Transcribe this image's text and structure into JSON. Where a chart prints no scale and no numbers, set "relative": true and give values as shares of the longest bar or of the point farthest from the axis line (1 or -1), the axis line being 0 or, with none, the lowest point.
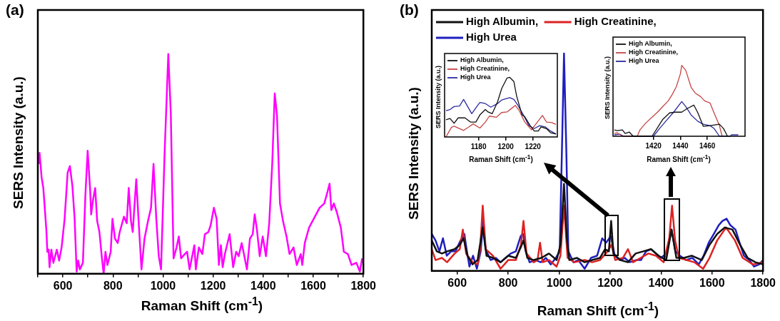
{
  "chart_data": [
    {
      "type": "line",
      "relative": true,
      "annotations": [
        "(a)"
      ],
      "xlabel": "Raman Shift (cm$^{-1}$)",
      "ylabel": "SERS Intensity (a.u.)",
      "xlim": [
        500,
        1800
      ],
      "xticks": [
        {
          "value": 500,
          "label": null
        },
        600,
        {
          "value": 700,
          "label": null
        },
        800,
        {
          "value": 900,
          "label": null
        },
        1000,
        {
          "value": 1100,
          "label": null
        },
        1200,
        {
          "value": 1300,
          "label": null
        },
        1400,
        {
          "value": 1500,
          "label": null
        },
        1600,
        {
          "value": 1700,
          "label": null
        },
        1800
      ],
      "marker": "none",
      "series": [
        {
          "color": "#ff00ff",
          "x": [
            504,
            507,
            515,
            522,
            534,
            538,
            543,
            547,
            554,
            562,
            576,
            585,
            595,
            607,
            619,
            628,
            638,
            647,
            655,
            661,
            668,
            680,
            690,
            699,
            709,
            713,
            721,
            729,
            737,
            746,
            756,
            763,
            770,
            778,
            791,
            798,
            808,
            819,
            827,
            844,
            855,
            863,
            872,
            879,
            893,
            902,
            914,
            926,
            940,
            952,
            962,
            973,
            983,
            992,
            1006,
            1021,
            1031,
            1042,
            1054,
            1063,
            1072,
            1087,
            1096,
            1106,
            1125,
            1131,
            1143,
            1157,
            1167,
            1181,
            1190,
            1203,
            1214,
            1223,
            1231,
            1238,
            1247,
            1266,
            1280,
            1292,
            1302,
            1314,
            1323,
            1335,
            1347,
            1358,
            1366,
            1375,
            1386,
            1398,
            1411,
            1424,
            1436,
            1446,
            1455,
            1467,
            1479,
            1493,
            1505,
            1521,
            1534,
            1550,
            1556,
            1566,
            1583,
            1597,
            1611,
            1625,
            1644,
            1656,
            1665,
            1672,
            1682,
            1694,
            1710,
            1722,
            1738,
            1753,
            1772,
            1786,
            1795
          ],
          "values": [
            0.5,
            0.55,
            0.44,
            0.39,
            0.2,
            0.1,
            0.11,
            0.03,
            0.11,
            0.05,
            0.11,
            0.06,
            0.12,
            0.25,
            0.46,
            0.49,
            0.4,
            0.25,
            0.01,
            0.06,
            0.02,
            0.05,
            0.36,
            0.56,
            0.38,
            0.27,
            0.34,
            0.39,
            0.24,
            0.19,
            0.07,
            0.0,
            0.1,
            0.04,
            0.1,
            0.25,
            0.16,
            0.14,
            0.19,
            0.26,
            0.23,
            0.39,
            0.24,
            0.19,
            0.43,
            0.25,
            0.02,
            0.16,
            0.24,
            0.3,
            0.5,
            0.25,
            0.08,
            0.02,
            0.54,
            1.0,
            0.73,
            0.07,
            0.12,
            0.17,
            0.07,
            0.09,
            0.1,
            0.02,
            0.13,
            0.02,
            0.12,
            0.09,
            0.18,
            0.19,
            0.22,
            0.3,
            0.25,
            0.04,
            0.13,
            0.03,
            0.09,
            0.18,
            0.03,
            0.1,
            0.08,
            0.14,
            0.09,
            0.02,
            0.16,
            0.18,
            0.27,
            0.2,
            0.08,
            0.17,
            0.08,
            0.23,
            0.5,
            0.82,
            0.72,
            0.32,
            0.24,
            0.17,
            0.09,
            0.12,
            0.04,
            0.09,
            0.04,
            0.14,
            0.21,
            0.24,
            0.27,
            0.3,
            0.32,
            0.37,
            0.41,
            0.29,
            0.32,
            0.28,
            0.21,
            0.1,
            0.09,
            0.04,
            0.05,
            0.01,
            0.07
          ]
        }
      ]
    },
    {
      "type": "line",
      "relative": true,
      "annotations": [
        "(b)"
      ],
      "xlabel": "Raman Shift (cm$^{-1}$)",
      "ylabel": "SERS Intensity (a.u.)",
      "xlim": [
        500,
        1800
      ],
      "xticks": [
        600,
        800,
        1000,
        1200,
        1400,
        1600,
        1800
      ],
      "marker": "none",
      "legend": "top left",
      "series": [
        {
          "name": "High Albumin,",
          "color": "#111111",
          "x": [
            500,
            520,
            540,
            560,
            590,
            610,
            625,
            640,
            660,
            680,
            700,
            715,
            740,
            770,
            800,
            830,
            850,
            860,
            875,
            900,
            930,
            960,
            990,
            1005,
            1019,
            1030,
            1040,
            1070,
            1100,
            1130,
            1160,
            1180,
            1195,
            1204,
            1213,
            1240,
            1270,
            1300,
            1330,
            1360,
            1390,
            1420,
            1441,
            1460,
            1490,
            1520,
            1560,
            1590,
            1620,
            1650,
            1680,
            1710,
            1740,
            1770,
            1800
          ],
          "values": [
            0.14,
            0.09,
            0.08,
            0.09,
            0.1,
            0.12,
            0.15,
            0.07,
            0.03,
            0.05,
            0.2,
            0.07,
            0.06,
            0.04,
            0.07,
            0.06,
            0.11,
            0.14,
            0.06,
            0.05,
            0.06,
            0.08,
            0.05,
            0.12,
            0.4,
            0.15,
            0.05,
            0.06,
            0.04,
            0.05,
            0.06,
            0.1,
            0.09,
            0.23,
            0.08,
            0.05,
            0.04,
            0.08,
            0.09,
            0.1,
            0.07,
            0.05,
            0.19,
            0.06,
            0.06,
            0.07,
            0.05,
            0.12,
            0.17,
            0.2,
            0.19,
            0.12,
            0.06,
            0.04,
            0.03
          ]
        },
        {
          "name": "High Creatinine,",
          "color": "#dd2222",
          "x": [
            500,
            515,
            540,
            560,
            590,
            610,
            622,
            635,
            660,
            680,
            690,
            700,
            712,
            740,
            770,
            800,
            830,
            850,
            860,
            872,
            900,
            915,
            925,
            935,
            960,
            990,
            1005,
            1019,
            1033,
            1060,
            1100,
            1130,
            1160,
            1190,
            1205,
            1220,
            1250,
            1270,
            1290,
            1320,
            1350,
            1380,
            1410,
            1432,
            1443,
            1455,
            1470,
            1500,
            1530,
            1565,
            1590,
            1620,
            1655,
            1690,
            1720,
            1760,
            1800
          ],
          "values": [
            0.1,
            0.05,
            0.06,
            0.04,
            0.08,
            0.1,
            0.19,
            0.08,
            0.04,
            0.03,
            0.1,
            0.3,
            0.1,
            0.07,
            0.01,
            0.05,
            0.05,
            0.12,
            0.23,
            0.08,
            0.04,
            0.05,
            0.13,
            0.04,
            0.05,
            0.02,
            0.07,
            0.3,
            0.06,
            0.04,
            0.05,
            0.04,
            0.05,
            0.09,
            0.12,
            0.05,
            0.06,
            0.1,
            0.04,
            0.06,
            0.08,
            0.07,
            0.04,
            0.15,
            0.3,
            0.14,
            0.06,
            0.05,
            0.04,
            0.01,
            0.06,
            0.14,
            0.2,
            0.14,
            0.06,
            0.03,
            0.04
          ]
        },
        {
          "name": "High Urea",
          "color": "#1f1fbf",
          "x": [
            500,
            515,
            530,
            544,
            559,
            576,
            593,
            613,
            628,
            638,
            648,
            662,
            677,
            692,
            702,
            711,
            731,
            751,
            770,
            790,
            810,
            830,
            849,
            859,
            869,
            884,
            908,
            928,
            948,
            967,
            987,
            1002,
            1011,
            1019,
            1028,
            1036,
            1056,
            1075,
            1100,
            1125,
            1149,
            1169,
            1184,
            1203,
            1218,
            1238,
            1257,
            1277,
            1302,
            1321,
            1341,
            1361,
            1380,
            1400,
            1420,
            1441,
            1456,
            1474,
            1498,
            1523,
            1548,
            1567,
            1587,
            1607,
            1626,
            1641,
            1657,
            1672,
            1692,
            1708,
            1725,
            1746,
            1765,
            1785,
            1800
          ],
          "values": [
            0.17,
            0.14,
            0.09,
            0.15,
            0.07,
            0.09,
            0.09,
            0.14,
            0.17,
            0.09,
            0.02,
            0.07,
            0.01,
            0.09,
            0.23,
            0.1,
            0.05,
            0.06,
            0.04,
            0.06,
            0.08,
            0.09,
            0.16,
            0.17,
            0.09,
            0.04,
            0.05,
            0.04,
            0.06,
            0.03,
            0.06,
            0.09,
            0.56,
            1.0,
            0.56,
            0.09,
            0.04,
            0.05,
            0.01,
            0.06,
            0.07,
            0.15,
            0.13,
            0.16,
            0.07,
            0.05,
            0.06,
            0.04,
            0.05,
            0.05,
            0.09,
            0.1,
            0.08,
            0.06,
            0.08,
            0.19,
            0.09,
            0.07,
            0.05,
            0.06,
            0.03,
            0.07,
            0.13,
            0.17,
            0.21,
            0.23,
            0.24,
            0.21,
            0.19,
            0.13,
            0.07,
            0.05,
            0.02,
            0.03,
            0.05
          ]
        }
      ]
    },
    {
      "type": "line",
      "relative": true,
      "xlabel": "Raman Shift (cm$^{-1}$)",
      "ylabel": "SERS Intensity (a.u.)",
      "xlim": [
        1155,
        1238
      ],
      "xticks": [
        1180,
        1200,
        1220
      ],
      "marker": "none",
      "legend": "top left",
      "series": [
        {
          "name": "High Albumin,",
          "color": "#111111",
          "x": [
            1156,
            1159,
            1162,
            1165,
            1170,
            1174,
            1178,
            1181,
            1185,
            1187,
            1190,
            1194,
            1197,
            1201,
            1203,
            1206,
            1208,
            1212,
            1214,
            1218,
            1221,
            1224,
            1226,
            1230,
            1233,
            1237
          ],
          "values": [
            0.29,
            0.31,
            0.23,
            0.32,
            0.32,
            0.25,
            0.25,
            0.37,
            0.46,
            0.42,
            0.39,
            0.59,
            0.81,
            0.99,
            1.0,
            0.93,
            0.69,
            0.37,
            0.34,
            0.19,
            0.1,
            0.1,
            0.17,
            0.14,
            0.07,
            0.05
          ]
        },
        {
          "name": "High Creatinine,",
          "color": "#c64545",
          "x": [
            1156,
            1160,
            1162,
            1169,
            1173,
            1176,
            1181,
            1185,
            1188,
            1193,
            1197,
            1201,
            1206,
            1207,
            1210,
            1214,
            1219,
            1223,
            1227,
            1230,
            1234,
            1237
          ],
          "values": [
            0.0,
            0.16,
            0.18,
            0.11,
            0.17,
            0.22,
            0.15,
            0.25,
            0.35,
            0.33,
            0.41,
            0.42,
            0.51,
            0.53,
            0.44,
            0.25,
            0.12,
            0.24,
            0.36,
            0.25,
            0.24,
            0.21
          ]
        },
        {
          "name": "High Urea",
          "color": "#2b2ba0",
          "x": [
            1156,
            1159,
            1162,
            1166,
            1169,
            1172,
            1175,
            1179,
            1181,
            1185,
            1189,
            1194,
            1197,
            1203,
            1206,
            1209,
            1213,
            1217,
            1221,
            1225,
            1229,
            1233,
            1237
          ],
          "values": [
            0.44,
            0.46,
            0.51,
            0.52,
            0.63,
            0.51,
            0.39,
            0.52,
            0.58,
            0.56,
            0.5,
            0.56,
            0.62,
            0.66,
            0.63,
            0.53,
            0.37,
            0.19,
            0.14,
            0.19,
            0.17,
            0.1,
            0.05
          ]
        }
      ]
    },
    {
      "type": "line",
      "relative": true,
      "xlabel": "Raman Shift (cm$^{-1}$)",
      "ylabel": "SERS Intensity (a.u.)",
      "xlim": [
        1390,
        1488
      ],
      "xticks": [
        1420,
        1440,
        1460
      ],
      "marker": "none",
      "legend": "top left",
      "series": [
        {
          "name": "High Albumin,",
          "color": "#111111",
          "x": [
            1391,
            1393,
            1397,
            1399,
            1402,
            1405,
            1419,
            1423,
            1427,
            1432,
            1436,
            1441,
            1445,
            1450,
            1453,
            1457,
            1462,
            1469,
            1472,
            1475
          ],
          "values": [
            0.09,
            0.08,
            0.09,
            0.04,
            0.06,
            0.0,
            0.0,
            0.12,
            0.24,
            0.33,
            0.34,
            0.34,
            0.39,
            0.44,
            0.33,
            0.14,
            0.15,
            0.17,
            0.11,
            0.0
          ]
        },
        {
          "name": "High Creatinine,",
          "color": "#c64545",
          "x": [
            1391,
            1393,
            1397,
            1408,
            1410,
            1414,
            1419,
            1423,
            1427,
            1431,
            1434,
            1437,
            1440,
            1441,
            1444,
            1448,
            1451,
            1455,
            1458,
            1462,
            1465,
            1469,
            1471
          ],
          "values": [
            0.04,
            0.05,
            0.0,
            0.0,
            0.09,
            0.18,
            0.27,
            0.34,
            0.42,
            0.5,
            0.59,
            0.7,
            0.88,
            1.0,
            0.93,
            0.69,
            0.61,
            0.56,
            0.5,
            0.47,
            0.33,
            0.15,
            0.0
          ]
        },
        {
          "name": "High Urea",
          "color": "#2b2ba0",
          "x": [
            1391,
            1395,
            1398,
            1420,
            1425,
            1430,
            1435,
            1441,
            1444,
            1448,
            1453,
            1457,
            1462,
            1465,
            1469,
            1477,
            1478,
            1483
          ],
          "values": [
            0.02,
            0.03,
            0.0,
            0.0,
            0.12,
            0.23,
            0.34,
            0.49,
            0.42,
            0.3,
            0.21,
            0.17,
            0.15,
            0.11,
            0.0,
            0.0,
            0.02,
            0.02
          ]
        }
      ]
    }
  ]
}
